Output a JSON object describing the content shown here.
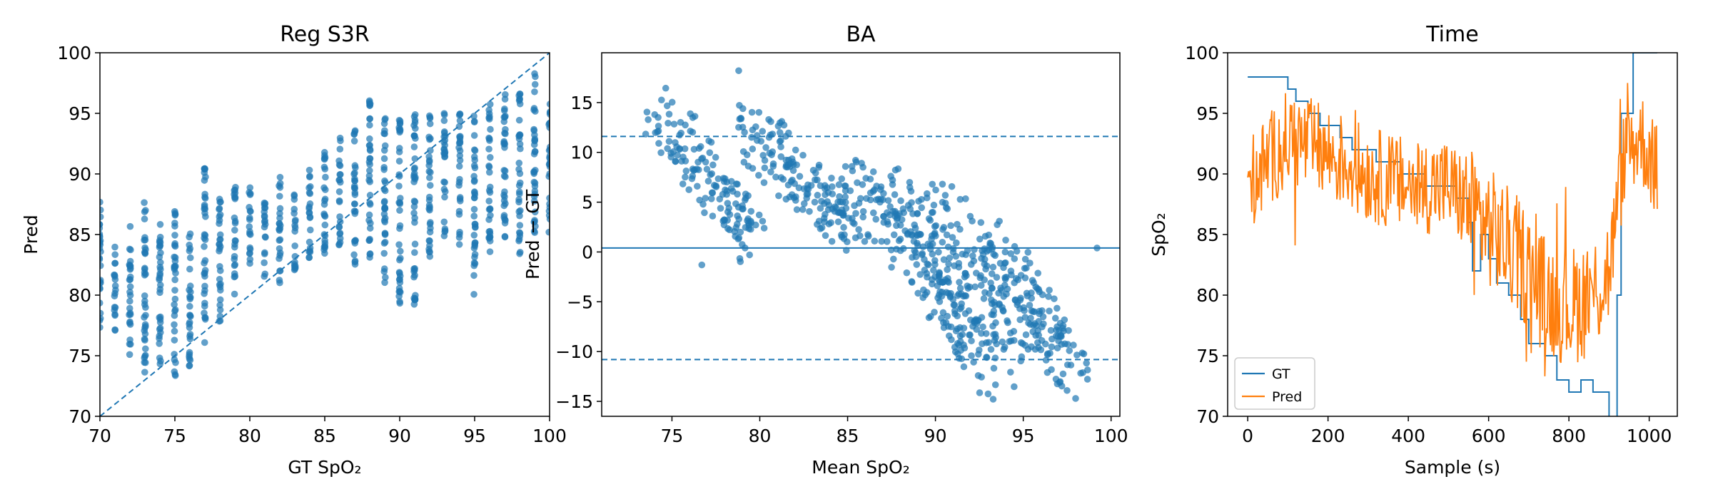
{
  "chart_data": [
    {
      "type": "scatter",
      "title": "Reg S3R",
      "xlabel": "GT SpO₂",
      "ylabel": "Pred",
      "xlim": [
        70,
        100
      ],
      "ylim": [
        70,
        100
      ],
      "xticks": [
        70,
        75,
        80,
        85,
        90,
        95,
        100
      ],
      "yticks": [
        70,
        75,
        80,
        85,
        90,
        95,
        100
      ],
      "color": "#1f77b4",
      "reference_line": {
        "style": "dashed",
        "from": [
          70,
          70
        ],
        "to": [
          100,
          100
        ]
      },
      "clusters": [
        {
          "x": 70,
          "y_range": [
            76,
            88
          ]
        },
        {
          "x": 71,
          "y_range": [
            77,
            84
          ]
        },
        {
          "x": 72,
          "y_range": [
            75,
            86
          ]
        },
        {
          "x": 73,
          "y_range": [
            73,
            88
          ]
        },
        {
          "x": 74,
          "y_range": [
            74,
            87
          ]
        },
        {
          "x": 75,
          "y_range": [
            73,
            87
          ]
        },
        {
          "x": 76,
          "y_range": [
            74,
            86
          ]
        },
        {
          "x": 77,
          "y_range": [
            76,
            91
          ]
        },
        {
          "x": 78,
          "y_range": [
            77,
            89
          ]
        },
        {
          "x": 79,
          "y_range": [
            80,
            89
          ]
        },
        {
          "x": 80,
          "y_range": [
            82,
            89
          ]
        },
        {
          "x": 81,
          "y_range": [
            81,
            88
          ]
        },
        {
          "x": 82,
          "y_range": [
            81,
            90
          ]
        },
        {
          "x": 83,
          "y_range": [
            82,
            89
          ]
        },
        {
          "x": 84,
          "y_range": [
            83,
            91
          ]
        },
        {
          "x": 85,
          "y_range": [
            82,
            92
          ]
        },
        {
          "x": 86,
          "y_range": [
            84,
            93
          ]
        },
        {
          "x": 87,
          "y_range": [
            82,
            94
          ]
        },
        {
          "x": 88,
          "y_range": [
            83,
            97
          ]
        },
        {
          "x": 89,
          "y_range": [
            81,
            95
          ]
        },
        {
          "x": 90,
          "y_range": [
            79,
            95
          ]
        },
        {
          "x": 91,
          "y_range": [
            79,
            96
          ]
        },
        {
          "x": 92,
          "y_range": [
            82,
            95
          ]
        },
        {
          "x": 93,
          "y_range": [
            84,
            95
          ]
        },
        {
          "x": 94,
          "y_range": [
            84,
            95
          ]
        },
        {
          "x": 95,
          "y_range": [
            80,
            95
          ]
        },
        {
          "x": 96,
          "y_range": [
            83,
            96
          ]
        },
        {
          "x": 97,
          "y_range": [
            84,
            97
          ]
        },
        {
          "x": 98,
          "y_range": [
            83,
            97
          ]
        },
        {
          "x": 99,
          "y_range": [
            85,
            99
          ]
        },
        {
          "x": 100,
          "y_range": [
            85,
            96
          ]
        }
      ]
    },
    {
      "type": "scatter",
      "title": "BA",
      "xlabel": "Mean SpO₂",
      "ylabel": "Pred − GT",
      "xlim": [
        71,
        100.5
      ],
      "ylim": [
        -16.5,
        20
      ],
      "xticks": [
        75,
        80,
        85,
        90,
        95,
        100
      ],
      "yticks": [
        -15,
        -10,
        -5,
        0,
        5,
        10,
        15
      ],
      "color": "#1f77b4",
      "mean_line": 0.4,
      "limits_of_agreement": [
        11.6,
        -10.8
      ],
      "band_slope": -2,
      "bands": [
        {
          "x_range": [
            73,
            78.5
          ],
          "y_range": [
            1,
            14
          ]
        },
        {
          "x_range": [
            74,
            79
          ],
          "y_range": [
            0,
            13
          ]
        },
        {
          "x_range": [
            78,
            84
          ],
          "y_range": [
            2,
            14
          ]
        },
        {
          "x_range": [
            79,
            85
          ],
          "y_range": [
            1,
            10
          ]
        },
        {
          "x_range": [
            84,
            92
          ],
          "y_range": [
            -11,
            8
          ]
        },
        {
          "x_range": [
            86,
            94
          ],
          "y_range": [
            -12,
            7
          ]
        },
        {
          "x_range": [
            87,
            93
          ],
          "y_range": [
            -15,
            5
          ]
        },
        {
          "x_range": [
            89,
            95
          ],
          "y_range": [
            -10,
            6
          ]
        },
        {
          "x_range": [
            92,
            97.5
          ],
          "y_range": [
            -14,
            1
          ]
        },
        {
          "x_range": [
            93,
            97
          ],
          "y_range": [
            -13,
            0
          ]
        }
      ],
      "outliers": [
        [
          78.8,
          18.2
        ],
        [
          99.2,
          0.4
        ],
        [
          76.7,
          -1.3
        ]
      ]
    },
    {
      "type": "line",
      "title": "Time",
      "xlabel": "Sample (s)",
      "ylabel": "SpO₂",
      "xlim": [
        -50,
        1070
      ],
      "ylim": [
        70,
        100
      ],
      "xticks": [
        0,
        200,
        400,
        600,
        800,
        1000
      ],
      "yticks": [
        70,
        75,
        80,
        85,
        90,
        95,
        100
      ],
      "legend_position": "lower-left",
      "series": [
        {
          "name": "GT",
          "color": "#1f77b4",
          "step": true,
          "points": [
            [
              0,
              98
            ],
            [
              100,
              97
            ],
            [
              120,
              96
            ],
            [
              150,
              95
            ],
            [
              180,
              94
            ],
            [
              230,
              93
            ],
            [
              260,
              92
            ],
            [
              320,
              91
            ],
            [
              380,
              90
            ],
            [
              440,
              89
            ],
            [
              520,
              88
            ],
            [
              550,
              86
            ],
            [
              560,
              82
            ],
            [
              580,
              85
            ],
            [
              600,
              83
            ],
            [
              620,
              81
            ],
            [
              650,
              80
            ],
            [
              680,
              78
            ],
            [
              700,
              76
            ],
            [
              740,
              75
            ],
            [
              770,
              73
            ],
            [
              800,
              72
            ],
            [
              830,
              73
            ],
            [
              860,
              72
            ],
            [
              880,
              72
            ],
            [
              900,
              68
            ],
            [
              920,
              80
            ],
            [
              930,
              95
            ],
            [
              960,
              100
            ],
            [
              1020,
              100
            ]
          ]
        },
        {
          "name": "Pred",
          "color": "#ff7f0e",
          "noisy": true,
          "trend": [
            [
              0,
              89
            ],
            [
              100,
              93
            ],
            [
              180,
              92
            ],
            [
              300,
              90
            ],
            [
              400,
              89
            ],
            [
              500,
              89
            ],
            [
              560,
              87
            ],
            [
              620,
              85
            ],
            [
              680,
              83
            ],
            [
              740,
              80
            ],
            [
              800,
              79
            ],
            [
              860,
              80
            ],
            [
              900,
              82
            ],
            [
              940,
              92
            ],
            [
              980,
              93
            ],
            [
              1020,
              90
            ]
          ]
        }
      ]
    }
  ]
}
